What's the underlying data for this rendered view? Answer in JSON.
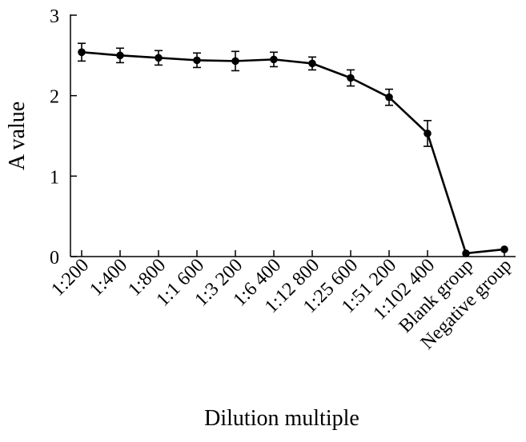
{
  "chart_data": {
    "type": "line",
    "title": "",
    "xlabel": "Dilution multiple",
    "ylabel": "A value",
    "ylim": [
      0,
      3
    ],
    "yticks": [
      0,
      1,
      2,
      3
    ],
    "grid": false,
    "categories": [
      "1:200",
      "1:400",
      "1:800",
      "1:1 600",
      "1:3 200",
      "1:6 400",
      "1:12 800",
      "1:25 600",
      "1:51 200",
      "1:102 400",
      "Blank group",
      "Negative group"
    ],
    "series": [
      {
        "values": [
          2.54,
          2.5,
          2.47,
          2.44,
          2.43,
          2.45,
          2.4,
          2.22,
          1.98,
          1.53,
          0.04,
          0.09
        ],
        "errors": [
          0.11,
          0.09,
          0.09,
          0.09,
          0.12,
          0.09,
          0.08,
          0.1,
          0.1,
          0.16,
          null,
          null
        ]
      }
    ]
  }
}
